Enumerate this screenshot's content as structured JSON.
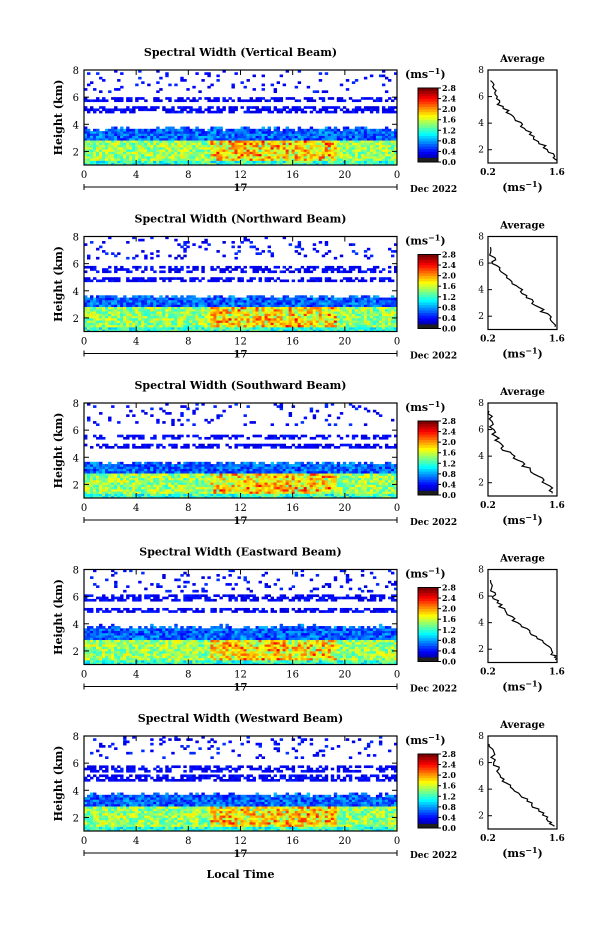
{
  "figure": {
    "date_label": "17",
    "month_year": "Dec 2022",
    "xlabel": "Local Time",
    "ylabel": "Height (km)",
    "unit": "(ms⁻¹)",
    "unit_base": "(ms",
    "unit_exp": "−1",
    "unit_close": ")",
    "avg_title": "Average"
  },
  "chart_data": [
    {
      "type": "heatmap",
      "title": "Spectral Width (Vertical Beam)",
      "xlabel": "",
      "ylabel": "Height (km)",
      "x_ticks": [
        "0",
        "4",
        "8",
        "12",
        "16",
        "20",
        "0"
      ],
      "xlim": [
        0,
        24
      ],
      "y_ticks": [
        "2",
        "4",
        "6",
        "8"
      ],
      "ylim": [
        1,
        8
      ],
      "colorbar": {
        "ticks": [
          "0.0",
          "0.4",
          "0.8",
          "1.2",
          "1.6",
          "2.0",
          "2.4",
          "2.8"
        ],
        "range": [
          0,
          2.8
        ]
      },
      "layers": {
        "main_top": 3.7,
        "upper_strip": [
          4.8,
          5.3
        ],
        "aux_band": [
          5.6,
          6.0
        ],
        "sparse_top": 8.0
      },
      "average_profile": {
        "title": "Average",
        "x_ticks": [
          "0.2",
          "1.6"
        ],
        "xlim": [
          0.2,
          1.6
        ],
        "ylim": [
          1,
          8
        ],
        "y_ticks": [
          "2",
          "4",
          "6",
          "8"
        ],
        "points": [
          [
            1.6,
            1.2
          ],
          [
            1.5,
            1.6
          ],
          [
            1.4,
            2.0
          ],
          [
            1.25,
            2.6
          ],
          [
            1.1,
            3.0
          ],
          [
            0.95,
            3.6
          ],
          [
            0.8,
            4.2
          ],
          [
            0.6,
            4.8
          ],
          [
            0.45,
            5.4
          ],
          [
            0.35,
            6.0
          ],
          [
            0.3,
            6.6
          ],
          [
            0.25,
            7.2
          ]
        ]
      }
    },
    {
      "type": "heatmap",
      "title": "Spectral Width (Northward Beam)",
      "xlabel": "",
      "ylabel": "Height (km)",
      "x_ticks": [
        "0",
        "4",
        "8",
        "12",
        "16",
        "20",
        "0"
      ],
      "xlim": [
        0,
        24
      ],
      "y_ticks": [
        "2",
        "4",
        "6",
        "8"
      ],
      "ylim": [
        1,
        8
      ],
      "colorbar": {
        "ticks": [
          "0.0",
          "0.4",
          "0.8",
          "1.2",
          "1.6",
          "2.0",
          "2.4",
          "2.8"
        ],
        "range": [
          0,
          2.8
        ]
      },
      "layers": {
        "main_top": 3.6,
        "upper_strip": [
          4.6,
          5.0
        ],
        "aux_band": [
          5.4,
          5.8
        ],
        "sparse_top": 8.0
      },
      "average_profile": {
        "title": "Average",
        "x_ticks": [
          "0.2",
          "1.6"
        ],
        "xlim": [
          0.2,
          1.6
        ],
        "ylim": [
          1,
          8
        ],
        "y_ticks": [
          "2",
          "4",
          "6",
          "8"
        ],
        "points": [
          [
            1.6,
            1.2
          ],
          [
            1.5,
            1.7
          ],
          [
            1.35,
            2.2
          ],
          [
            1.2,
            2.8
          ],
          [
            1.0,
            3.4
          ],
          [
            0.85,
            4.0
          ],
          [
            0.65,
            4.6
          ],
          [
            0.5,
            5.2
          ],
          [
            0.35,
            5.8
          ],
          [
            0.3,
            6.4
          ],
          [
            0.25,
            7.2
          ]
        ]
      }
    },
    {
      "type": "heatmap",
      "title": "Spectral Width (Southward Beam)",
      "xlabel": "",
      "ylabel": "Height (km)",
      "x_ticks": [
        "0",
        "4",
        "8",
        "12",
        "16",
        "20",
        "0"
      ],
      "xlim": [
        0,
        24
      ],
      "y_ticks": [
        "2",
        "4",
        "6",
        "8"
      ],
      "ylim": [
        1,
        8
      ],
      "colorbar": {
        "ticks": [
          "0.0",
          "0.4",
          "0.8",
          "1.2",
          "1.6",
          "2.0",
          "2.4",
          "2.8"
        ],
        "range": [
          0,
          2.8
        ]
      },
      "layers": {
        "main_top": 3.6,
        "upper_strip": [
          4.6,
          5.0
        ],
        "aux_band": [
          5.3,
          5.6
        ],
        "sparse_top": 8.0
      },
      "average_profile": {
        "title": "Average",
        "x_ticks": [
          "0.2",
          "1.6"
        ],
        "xlim": [
          0.2,
          1.6
        ],
        "ylim": [
          1,
          8
        ],
        "y_ticks": [
          "2",
          "4",
          "6",
          "8"
        ],
        "points": [
          [
            1.55,
            1.2
          ],
          [
            1.45,
            1.6
          ],
          [
            1.3,
            2.2
          ],
          [
            1.1,
            2.8
          ],
          [
            0.9,
            3.4
          ],
          [
            0.7,
            4.0
          ],
          [
            0.5,
            4.6
          ],
          [
            0.4,
            5.2
          ],
          [
            0.3,
            5.8
          ],
          [
            0.25,
            6.6
          ],
          [
            0.22,
            7.4
          ]
        ]
      }
    },
    {
      "type": "heatmap",
      "title": "Spectral Width (Eastward Beam)",
      "xlabel": "",
      "ylabel": "Height (km)",
      "x_ticks": [
        "0",
        "4",
        "8",
        "12",
        "16",
        "20",
        "0"
      ],
      "xlim": [
        0,
        24
      ],
      "y_ticks": [
        "2",
        "4",
        "6",
        "8"
      ],
      "ylim": [
        1,
        8
      ],
      "colorbar": {
        "ticks": [
          "0.0",
          "0.4",
          "0.8",
          "1.2",
          "1.6",
          "2.0",
          "2.4",
          "2.8"
        ],
        "range": [
          0,
          2.8
        ]
      },
      "layers": {
        "main_top": 3.8,
        "upper_strip": [
          4.8,
          5.2
        ],
        "aux_band": [
          5.6,
          6.1
        ],
        "sparse_top": 8.0
      },
      "average_profile": {
        "title": "Average",
        "x_ticks": [
          "0.2",
          "1.6"
        ],
        "xlim": [
          0.2,
          1.6
        ],
        "ylim": [
          1,
          8
        ],
        "y_ticks": [
          "2",
          "4",
          "6",
          "8"
        ],
        "points": [
          [
            1.6,
            1.2
          ],
          [
            1.5,
            1.6
          ],
          [
            1.4,
            2.2
          ],
          [
            1.2,
            2.8
          ],
          [
            1.0,
            3.4
          ],
          [
            0.8,
            4.0
          ],
          [
            0.6,
            4.6
          ],
          [
            0.45,
            5.2
          ],
          [
            0.35,
            5.8
          ],
          [
            0.3,
            6.4
          ],
          [
            0.25,
            7.2
          ]
        ]
      }
    },
    {
      "type": "heatmap",
      "title": "Spectral Width (Westward Beam)",
      "xlabel": "Local Time",
      "ylabel": "Height (km)",
      "x_ticks": [
        "0",
        "4",
        "8",
        "12",
        "16",
        "20",
        "0"
      ],
      "xlim": [
        0,
        24
      ],
      "y_ticks": [
        "2",
        "4",
        "6",
        "8"
      ],
      "ylim": [
        1,
        8
      ],
      "colorbar": {
        "ticks": [
          "0.0",
          "0.4",
          "0.8",
          "1.2",
          "1.6",
          "2.0",
          "2.4",
          "2.8"
        ],
        "range": [
          0,
          2.8
        ]
      },
      "layers": {
        "main_top": 3.7,
        "upper_strip": [
          4.7,
          5.1
        ],
        "aux_band": [
          5.4,
          5.8
        ],
        "sparse_top": 8.0
      },
      "average_profile": {
        "title": "Average",
        "x_ticks": [
          "0.2",
          "1.6"
        ],
        "xlim": [
          0.2,
          1.6
        ],
        "ylim": [
          1,
          8
        ],
        "y_ticks": [
          "2",
          "4",
          "6",
          "8"
        ],
        "points": [
          [
            1.55,
            1.2
          ],
          [
            1.45,
            1.6
          ],
          [
            1.3,
            2.2
          ],
          [
            1.1,
            2.8
          ],
          [
            0.9,
            3.4
          ],
          [
            0.7,
            4.0
          ],
          [
            0.55,
            4.6
          ],
          [
            0.45,
            5.2
          ],
          [
            0.35,
            5.8
          ],
          [
            0.28,
            6.6
          ],
          [
            0.22,
            7.4
          ]
        ]
      }
    }
  ]
}
